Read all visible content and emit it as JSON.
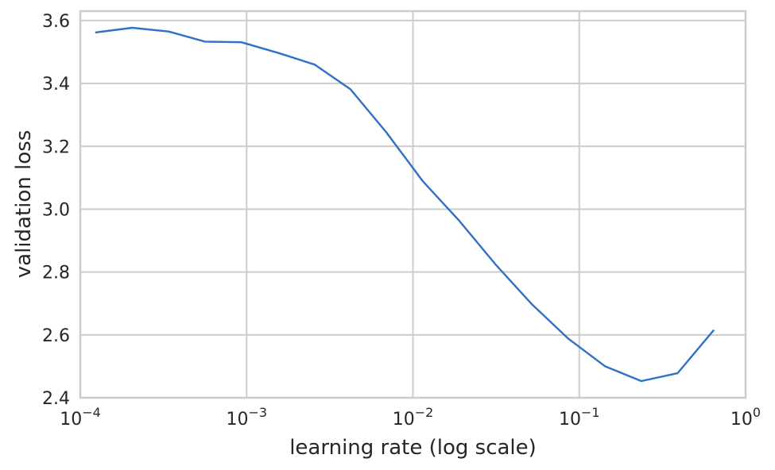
{
  "chart_data": {
    "type": "line",
    "xlabel": "learning rate (log scale)",
    "ylabel": "validation loss",
    "xscale": "log",
    "xlim": [
      0.0001,
      1
    ],
    "ylim": [
      2.4,
      3.63
    ],
    "grid": true,
    "x_ticks": [
      {
        "value": 0.0001,
        "base": "10",
        "exp": "−4"
      },
      {
        "value": 0.001,
        "base": "10",
        "exp": "−3"
      },
      {
        "value": 0.01,
        "base": "10",
        "exp": "−2"
      },
      {
        "value": 0.1,
        "base": "10",
        "exp": "−1"
      },
      {
        "value": 1,
        "base": "10",
        "exp": "0"
      }
    ],
    "y_ticks": [
      {
        "value": 2.4,
        "label": "2.4"
      },
      {
        "value": 2.6,
        "label": "2.6"
      },
      {
        "value": 2.8,
        "label": "2.8"
      },
      {
        "value": 3.0,
        "label": "3.0"
      },
      {
        "value": 3.2,
        "label": "3.2"
      },
      {
        "value": 3.4,
        "label": "3.4"
      },
      {
        "value": 3.6,
        "label": "3.6"
      }
    ],
    "series": [
      {
        "color": "#3070c8",
        "x": [
          0.000123,
          0.000205,
          0.00034,
          0.00056,
          0.00093,
          0.00155,
          0.00256,
          0.0042,
          0.0069,
          0.0115,
          0.019,
          0.0315,
          0.052,
          0.086,
          0.143,
          0.236,
          0.39,
          0.645
        ],
        "y": [
          3.562,
          3.577,
          3.565,
          3.533,
          3.531,
          3.497,
          3.46,
          3.382,
          3.245,
          3.088,
          2.963,
          2.823,
          2.697,
          2.588,
          2.5,
          2.453,
          2.478,
          2.616
        ]
      }
    ]
  }
}
